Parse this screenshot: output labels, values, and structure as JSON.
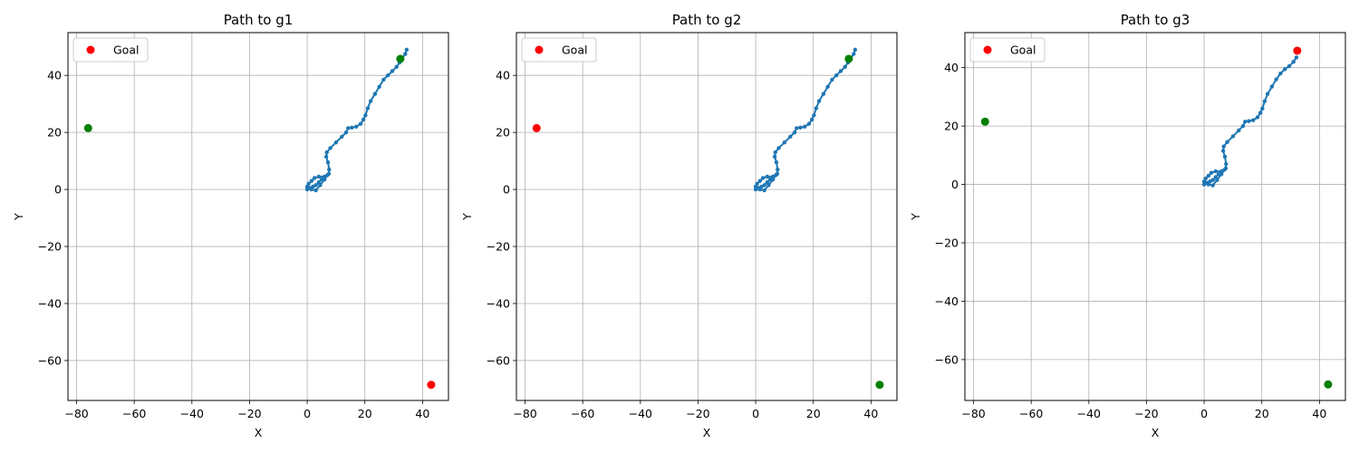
{
  "chart_data": [
    {
      "type": "scatter",
      "title": "Path to g1",
      "xlabel": "X",
      "ylabel": "Y",
      "xlim": [
        -83,
        49
      ],
      "ylim": [
        -74,
        55
      ],
      "xticks": [
        -80,
        -60,
        -40,
        -20,
        0,
        20,
        40
      ],
      "yticks": [
        -60,
        -40,
        -20,
        0,
        20,
        40
      ],
      "grid": true,
      "legend": {
        "placement": "upper-left",
        "entries": [
          "Goal"
        ]
      },
      "goal": {
        "x": 43,
        "y": -68.5,
        "color": "#ff0000"
      },
      "other_points": [
        {
          "x": -76,
          "y": 21.5,
          "color": "#008000"
        },
        {
          "x": 32.3,
          "y": 45.8,
          "color": "#008000"
        }
      ],
      "path": {
        "color": "#1f77b4",
        "x": [
          0,
          1,
          2,
          3,
          4,
          5,
          6,
          4,
          2.5,
          1.5,
          0.5,
          0,
          0.5,
          1.5,
          3,
          4.5,
          6,
          7,
          7.5,
          7.6,
          7.2,
          6.6,
          6.8,
          8,
          10,
          12,
          13.5,
          14.2,
          15.5,
          17,
          18.5,
          19.5,
          20.2,
          21,
          22,
          23.5,
          25,
          26.5,
          28,
          29.5,
          31,
          32,
          33,
          34,
          34.5
        ],
        "y": [
          0,
          0.5,
          1,
          1.5,
          2.5,
          3.5,
          4.5,
          4.5,
          4,
          3,
          2,
          1,
          0.5,
          0,
          -0.3,
          1.5,
          3.5,
          5,
          5.5,
          7,
          9.5,
          11.5,
          13,
          14.5,
          16.5,
          18.5,
          20,
          21.5,
          21.7,
          22,
          23,
          24.5,
          26,
          28.5,
          31,
          33.5,
          36,
          38.5,
          40,
          41.5,
          43,
          44.5,
          46,
          47.5,
          49
        ]
      }
    },
    {
      "type": "scatter",
      "title": "Path to g2",
      "xlabel": "X",
      "ylabel": "Y",
      "xlim": [
        -83,
        49
      ],
      "ylim": [
        -74,
        55
      ],
      "xticks": [
        -80,
        -60,
        -40,
        -20,
        0,
        20,
        40
      ],
      "yticks": [
        -60,
        -40,
        -20,
        0,
        20,
        40
      ],
      "grid": true,
      "legend": {
        "placement": "upper-left",
        "entries": [
          "Goal"
        ]
      },
      "goal": {
        "x": -76,
        "y": 21.5,
        "color": "#ff0000"
      },
      "other_points": [
        {
          "x": 43,
          "y": -68.5,
          "color": "#008000"
        },
        {
          "x": 32.3,
          "y": 45.8,
          "color": "#008000"
        }
      ],
      "path": {
        "color": "#1f77b4",
        "x": [
          0,
          1,
          2,
          3,
          4,
          5,
          6,
          4,
          2.5,
          1.5,
          0.5,
          0,
          0.5,
          1.5,
          3,
          4.5,
          6,
          7,
          7.5,
          7.6,
          7.2,
          6.6,
          6.8,
          8,
          10,
          12,
          13.5,
          14.2,
          15.5,
          17,
          18.5,
          19.5,
          20.2,
          21,
          22,
          23.5,
          25,
          26.5,
          28,
          29.5,
          31,
          32,
          33,
          34,
          34.5
        ],
        "y": [
          0,
          0.5,
          1,
          1.5,
          2.5,
          3.5,
          4.5,
          4.5,
          4,
          3,
          2,
          1,
          0.5,
          0,
          -0.3,
          1.5,
          3.5,
          5,
          5.5,
          7,
          9.5,
          11.5,
          13,
          14.5,
          16.5,
          18.5,
          20,
          21.5,
          21.7,
          22,
          23,
          24.5,
          26,
          28.5,
          31,
          33.5,
          36,
          38.5,
          40,
          41.5,
          43,
          44.5,
          46,
          47.5,
          49
        ]
      }
    },
    {
      "type": "scatter",
      "title": "Path to g3",
      "xlabel": "X",
      "ylabel": "Y",
      "xlim": [
        -83,
        49
      ],
      "ylim": [
        -74,
        52
      ],
      "xticks": [
        -80,
        -60,
        -40,
        -20,
        0,
        20,
        40
      ],
      "yticks": [
        -60,
        -40,
        -20,
        0,
        20,
        40
      ],
      "grid": true,
      "legend": {
        "placement": "upper-left",
        "entries": [
          "Goal"
        ]
      },
      "goal": {
        "x": 32.3,
        "y": 45.8,
        "color": "#ff0000"
      },
      "other_points": [
        {
          "x": -76,
          "y": 21.5,
          "color": "#008000"
        },
        {
          "x": 43,
          "y": -68.5,
          "color": "#008000"
        }
      ],
      "path": {
        "color": "#1f77b4",
        "x": [
          0,
          1,
          2,
          3,
          4,
          5,
          6,
          4,
          2.5,
          1.5,
          0.5,
          0,
          0.5,
          1.5,
          3,
          4.5,
          6,
          7,
          7.5,
          7.6,
          7.2,
          6.6,
          6.8,
          8,
          10,
          12,
          13.5,
          14.2,
          15.5,
          17,
          18.5,
          19.5,
          20.2,
          21,
          22,
          23.5,
          25,
          26.5,
          28,
          29.5,
          31,
          32
        ],
        "y": [
          0,
          0.5,
          1,
          1.5,
          2.5,
          3.5,
          4.5,
          4.5,
          4,
          3,
          2,
          1,
          0.5,
          0,
          -0.3,
          1.5,
          3.5,
          5,
          5.5,
          7,
          9.5,
          11.5,
          13,
          14.5,
          16.5,
          18.5,
          20,
          21.5,
          21.7,
          22,
          23,
          24.5,
          26,
          28.5,
          31,
          33.5,
          36,
          38,
          39.5,
          40.5,
          42,
          43.5
        ]
      }
    }
  ]
}
